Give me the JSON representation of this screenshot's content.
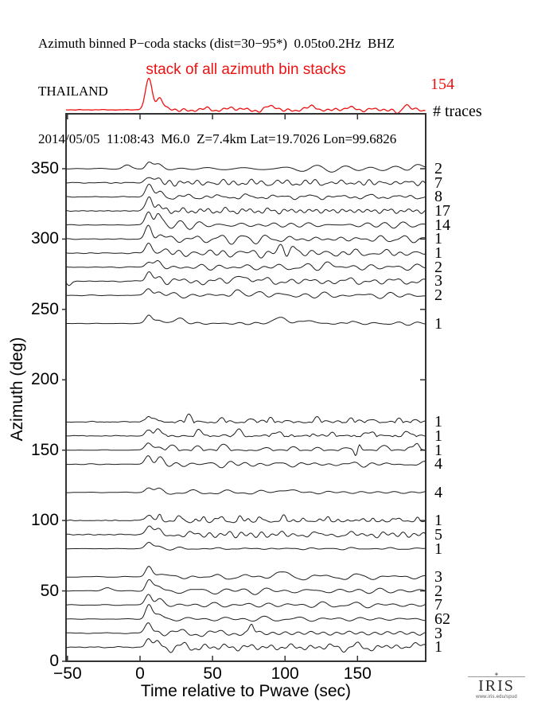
{
  "header": {
    "line1": "Azimuth binned P−coda stacks (dist=30−95*)  0.05to0.2Hz  BHZ",
    "line2": "THAILAND",
    "line3": "2014/05/05  11:08:43  M6.0  Z=7.4km Lat=19.7026 Lon=99.6826"
  },
  "stack_panel": {
    "label": "stack of all azimuth bin stacks",
    "total_traces": "154",
    "heading": "# traces",
    "color": "#ee1111"
  },
  "footer": {
    "logo_text": "IRIS",
    "logo_subtext": "www.iris.edu/spud"
  },
  "chart_data": {
    "type": "line",
    "title": "Azimuth binned P−coda stacks (dist=30−95*) 0.05to0.2Hz BHZ — THAILAND",
    "event": "2014/05/05 11:08:43 M6.0 Z=7.4km Lat=19.7026 Lon=99.6826",
    "xlabel": "Time relative to Pwave (sec)",
    "ylabel": "Azimuth (deg)",
    "xlim": [
      -51,
      197
    ],
    "ylim": [
      0,
      389
    ],
    "xticks": [
      {
        "v": -50,
        "label": "−50"
      },
      {
        "v": 0,
        "label": "0"
      },
      {
        "v": 50,
        "label": "50"
      },
      {
        "v": 100,
        "label": "100"
      },
      {
        "v": 150,
        "label": "150"
      }
    ],
    "yticks": [
      {
        "v": 0,
        "label": "0"
      },
      {
        "v": 50,
        "label": "50"
      },
      {
        "v": 100,
        "label": "100"
      },
      {
        "v": 150,
        "label": "150"
      },
      {
        "v": 200,
        "label": "200"
      },
      {
        "v": 250,
        "label": "250"
      },
      {
        "v": 300,
        "label": "300"
      },
      {
        "v": 350,
        "label": "350"
      }
    ],
    "grid": false,
    "legend": "none",
    "line_color": "#1c1c1c",
    "stack_trace": {
      "label": "stack of all azimuth bin stacks",
      "num_traces": 154,
      "color": "#ee1111",
      "peak": 40,
      "coda": 2.2,
      "seed": 99,
      "extras": [
        [
          60,
          2,
          4
        ],
        [
          90,
          3,
          4
        ],
        [
          120,
          3,
          4
        ],
        [
          147,
          3,
          3
        ],
        [
          178,
          -4,
          2
        ],
        [
          183,
          6,
          2.2
        ]
      ]
    },
    "traces": [
      {
        "azimuth": 350,
        "num_traces": 2,
        "peak": 9,
        "coda": 3.2,
        "seed": 11,
        "rect": 0,
        "extras": [
          [
            -9,
            4,
            2.5
          ],
          [
            190,
            5,
            3
          ]
        ]
      },
      {
        "azimuth": 340,
        "num_traces": 7,
        "peak": 8,
        "coda": 3.4,
        "seed": 12,
        "rect": 0,
        "extras": []
      },
      {
        "azimuth": 330,
        "num_traces": 8,
        "peak": 15,
        "coda": 3.0,
        "seed": 13,
        "rect": 0,
        "extras": []
      },
      {
        "azimuth": 320,
        "num_traces": 17,
        "peak": 17,
        "coda": 2.8,
        "seed": 14,
        "rect": 0,
        "extras": []
      },
      {
        "azimuth": 310,
        "num_traces": 14,
        "peak": 17,
        "coda": 3.0,
        "seed": 15,
        "rect": 0,
        "extras": [
          [
            12,
            8,
            1.5
          ]
        ]
      },
      {
        "azimuth": 300,
        "num_traces": 1,
        "peak": 16,
        "coda": 4.0,
        "seed": 16,
        "rect": 0,
        "extras": []
      },
      {
        "azimuth": 290,
        "num_traces": 1,
        "peak": 12,
        "coda": 3.4,
        "seed": 17,
        "rect": 0,
        "extras": [
          [
            97,
            8,
            2
          ],
          [
            101,
            -7,
            1.5
          ],
          [
            105,
            12,
            2
          ]
        ]
      },
      {
        "azimuth": 280,
        "num_traces": 2,
        "peak": 9,
        "coda": 3.4,
        "seed": 18,
        "rect": 0,
        "extras": [
          [
            130,
            5,
            3
          ]
        ]
      },
      {
        "azimuth": 270,
        "num_traces": 3,
        "peak": 12,
        "coda": 3.6,
        "seed": 19,
        "rect": 0,
        "extras": [
          [
            -49,
            -5,
            1.5
          ],
          [
            68,
            7,
            2.5
          ],
          [
            75,
            6,
            2
          ]
        ]
      },
      {
        "azimuth": 260,
        "num_traces": 2,
        "peak": 10,
        "coda": 3.0,
        "seed": 20,
        "rect": 0,
        "extras": [
          [
            66,
            7,
            2.5
          ],
          [
            85,
            5,
            2.5
          ]
        ]
      },
      {
        "azimuth": 240,
        "num_traces": 1,
        "peak": 11,
        "coda": 1.6,
        "seed": 21,
        "rect": 0,
        "extras": [
          [
            27,
            6,
            4
          ],
          [
            97,
            7,
            5
          ],
          [
            116,
            5,
            3
          ],
          [
            146,
            3,
            2
          ]
        ]
      },
      {
        "azimuth": 170,
        "num_traces": 1,
        "peak": 7,
        "coda": 5.5,
        "seed": 22,
        "rect": 0.65,
        "extras": []
      },
      {
        "azimuth": 160,
        "num_traces": 1,
        "peak": 8,
        "coda": 5.0,
        "seed": 23,
        "rect": 0.6,
        "extras": []
      },
      {
        "azimuth": 150,
        "num_traces": 1,
        "peak": 9,
        "coda": 5.0,
        "seed": 24,
        "rect": 0.55,
        "extras": [
          [
            149,
            -9,
            1.2
          ],
          [
            151,
            9,
            1.2
          ],
          [
            191,
            9,
            1.5
          ]
        ]
      },
      {
        "azimuth": 140,
        "num_traces": 4,
        "peak": 12,
        "coda": 3.0,
        "seed": 25,
        "rect": 0,
        "extras": []
      },
      {
        "azimuth": 120,
        "num_traces": 4,
        "peak": 6,
        "coda": 2.4,
        "seed": 26,
        "rect": 0,
        "extras": [
          [
            100,
            4,
            4
          ]
        ]
      },
      {
        "azimuth": 100,
        "num_traces": 1,
        "peak": 7,
        "coda": 5.0,
        "seed": 27,
        "rect": 0.3,
        "extras": []
      },
      {
        "azimuth": 90,
        "num_traces": 5,
        "peak": 11,
        "coda": 3.4,
        "seed": 28,
        "rect": 0,
        "extras": []
      },
      {
        "azimuth": 80,
        "num_traces": 1,
        "peak": 8,
        "coda": 1.2,
        "seed": 29,
        "rect": 0,
        "extras": []
      },
      {
        "azimuth": 60,
        "num_traces": 3,
        "peak": 13,
        "coda": 3.0,
        "seed": 30,
        "rect": 0,
        "extras": [
          [
            95,
            7,
            3
          ]
        ]
      },
      {
        "azimuth": 50,
        "num_traces": 2,
        "peak": 13,
        "coda": 3.2,
        "seed": 31,
        "rect": 0,
        "extras": [
          [
            -23,
            4,
            3
          ]
        ]
      },
      {
        "azimuth": 40,
        "num_traces": 7,
        "peak": 15,
        "coda": 3.0,
        "seed": 32,
        "rect": 0,
        "extras": []
      },
      {
        "azimuth": 30,
        "num_traces": 62,
        "peak": 17,
        "coda": 2.2,
        "seed": 33,
        "rect": 0,
        "extras": []
      },
      {
        "azimuth": 20,
        "num_traces": 3,
        "peak": 12,
        "coda": 3.2,
        "seed": 34,
        "rect": 0,
        "extras": [
          [
            77,
            11,
            1.4
          ]
        ]
      },
      {
        "azimuth": 10,
        "num_traces": 1,
        "peak": 10,
        "coda": 4.0,
        "seed": 35,
        "rect": 0,
        "extras": [
          [
            188,
            5,
            2.5
          ]
        ]
      }
    ]
  }
}
